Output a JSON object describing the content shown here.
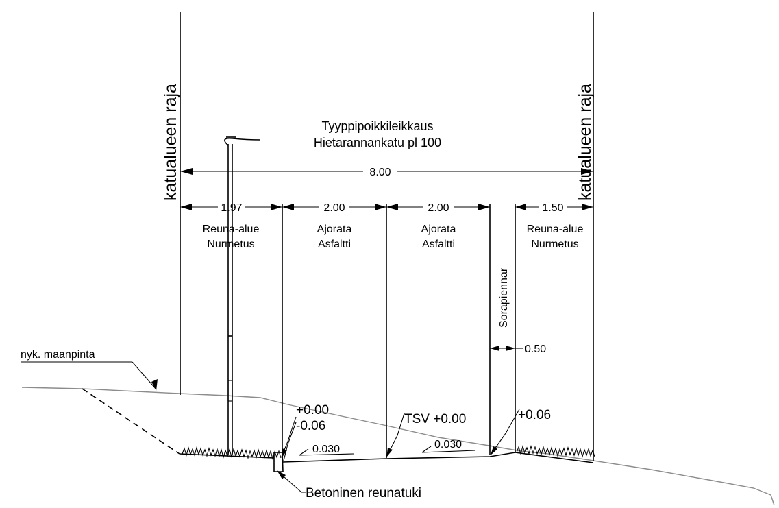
{
  "title": {
    "line1": "Tyyppipoikkileikkaus",
    "line2": "Hietarannankatu pl 100"
  },
  "boundaries": {
    "left": "katualueen raja",
    "right": "katualueen raja"
  },
  "dimensions": {
    "total": "8.00",
    "segments": [
      "1.97",
      "2.00",
      "2.00",
      "1.50"
    ],
    "shoulder": "0.50"
  },
  "zones": [
    {
      "line1": "Reuna-alue",
      "line2": "Nurmetus"
    },
    {
      "line1": "Ajorata",
      "line2": "Asfaltti"
    },
    {
      "line1": "Ajorata",
      "line2": "Asfaltti"
    },
    {
      "line1": "Reuna-alue",
      "line2": "Nurmetus"
    }
  ],
  "shoulder_label": "Sorapiennar",
  "existing_ground": "nyk. maanpinta",
  "elevations": {
    "curb_top": "+0.00",
    "curb_bottom": "-0.06",
    "centerline": "TSV +0.00",
    "right_edge": "+0.06"
  },
  "slopes": {
    "left": "0.030",
    "right": "0.030"
  },
  "curb_label": "Betoninen reunatuki"
}
